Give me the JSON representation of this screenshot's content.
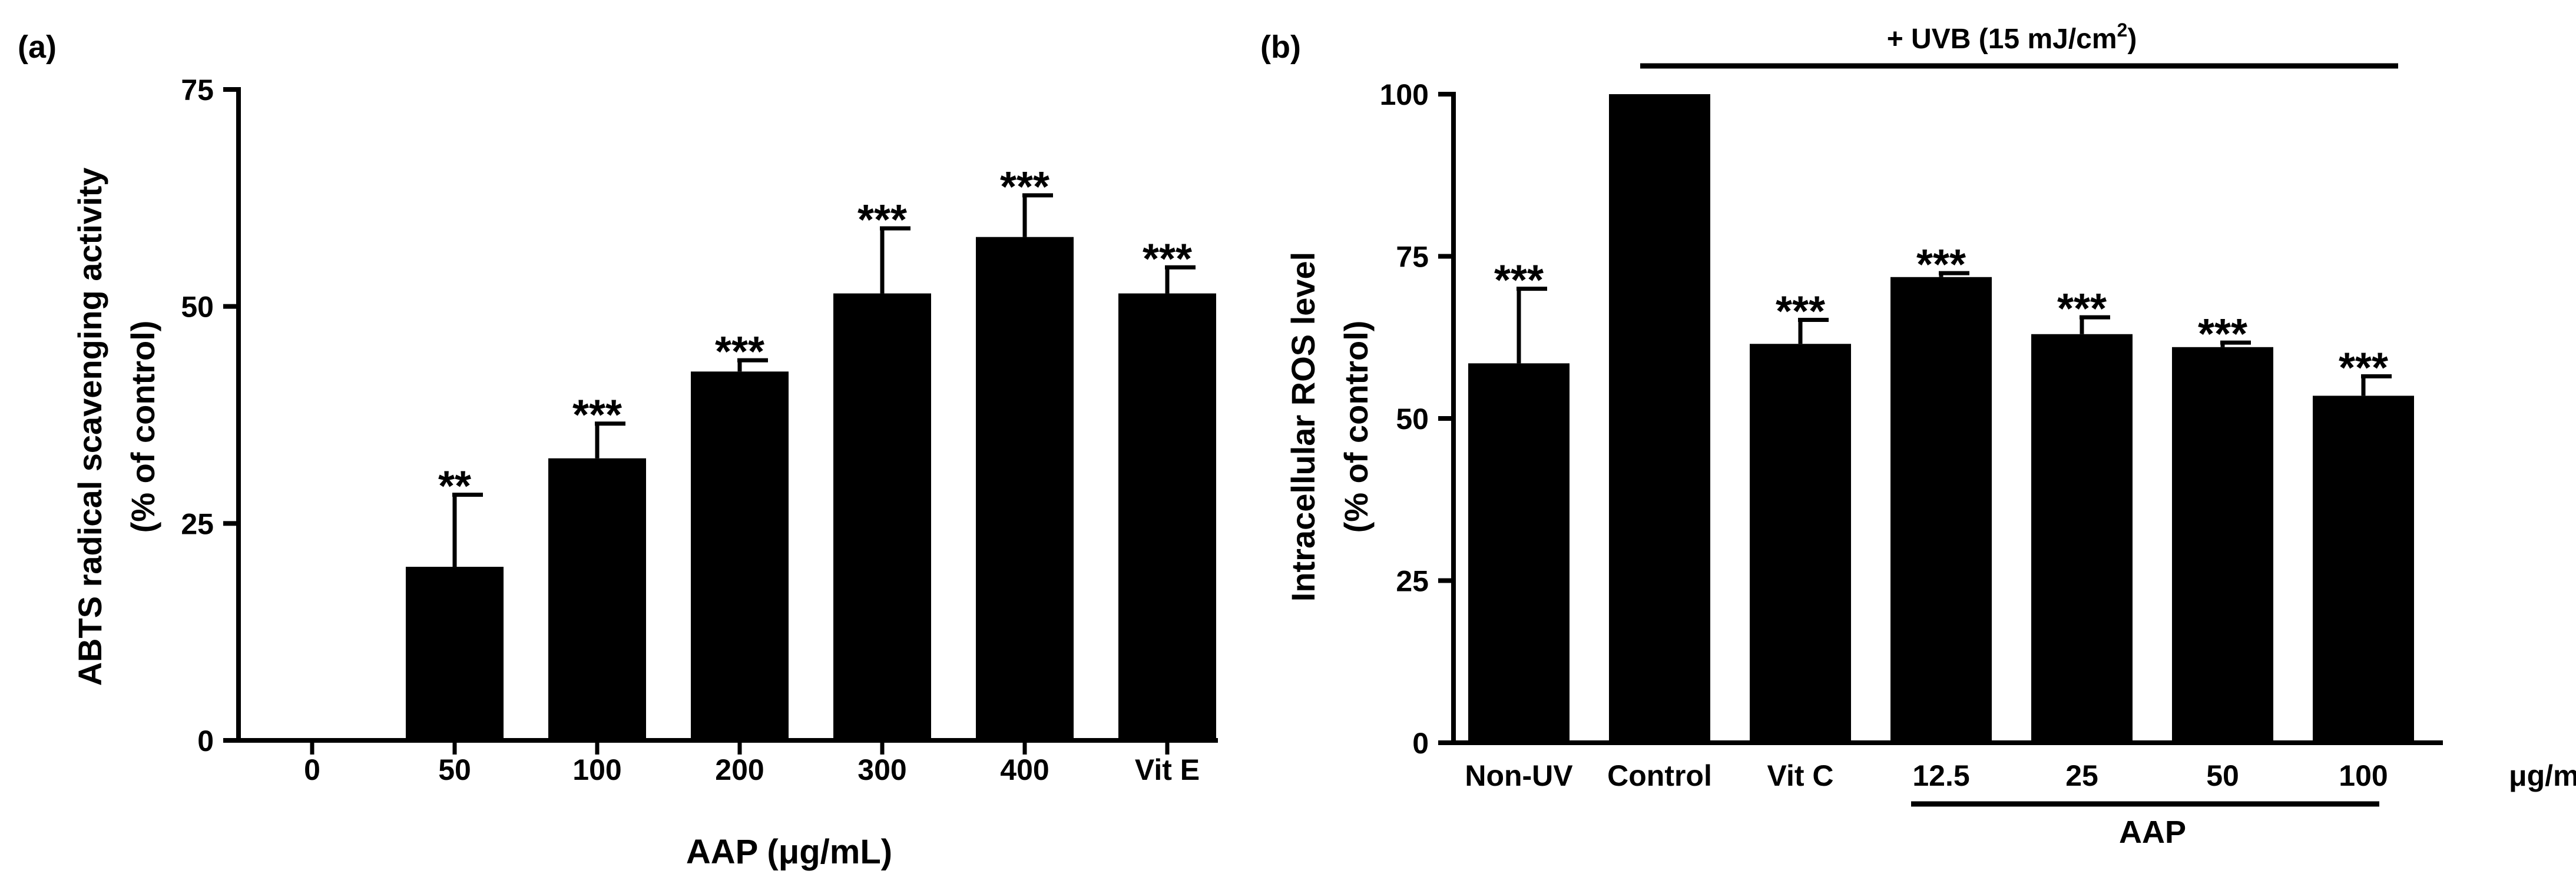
{
  "colors": {
    "bar": "#000000",
    "axis": "#000000",
    "background": "#ffffff"
  },
  "chart_data": [
    {
      "panel": "(a)",
      "type": "bar",
      "xlabel": "AAP (μg/mL)",
      "ylabel_line1": "ABTS radical scavenging activity",
      "ylabel_line2": "(% of control)",
      "ylim": [
        0,
        75
      ],
      "yticks": [
        0,
        25,
        50,
        75
      ],
      "categories": [
        "0",
        "50",
        "100",
        "200",
        "300",
        "400",
        "Vit E"
      ],
      "values": [
        0,
        20,
        32.5,
        42.5,
        51.5,
        58,
        51.5
      ],
      "errors": [
        0,
        8.3,
        4,
        1.3,
        7.5,
        4.8,
        3
      ],
      "significance": [
        "",
        "**",
        "***",
        "***",
        "***",
        "***",
        "***"
      ]
    },
    {
      "panel": "(b)",
      "type": "bar",
      "xlabel": "",
      "ylabel_line1": "Intracellular ROS level",
      "ylabel_line2": "(% of control)",
      "ylim": [
        0,
        100
      ],
      "yticks": [
        0,
        25,
        50,
        75,
        100
      ],
      "categories": [
        "Non-UV",
        "Control",
        "Vit C",
        "12.5",
        "25",
        "50",
        "100"
      ],
      "values": [
        58.5,
        100,
        61.5,
        71.8,
        63,
        61,
        53.5
      ],
      "errors": [
        11.5,
        0,
        3.7,
        0.6,
        2.6,
        0.7,
        3
      ],
      "significance": [
        "***",
        "",
        "***",
        "***",
        "***",
        "***",
        "***"
      ],
      "unit_label": "μg/mL",
      "group_label": "AAP",
      "treatment_label_prefix": "+ UVB (15 mJ/cm",
      "treatment_label_sup": "2",
      "treatment_label_suffix": ")"
    }
  ]
}
